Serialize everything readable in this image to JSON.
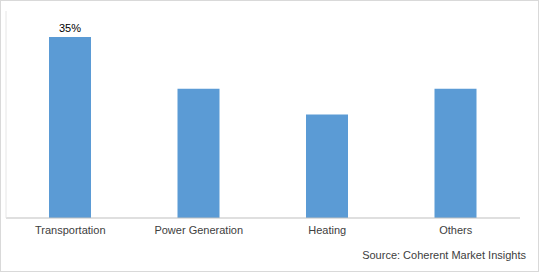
{
  "chart_data": {
    "type": "bar",
    "categories": [
      "Transportation",
      "Power Generation",
      "Heating",
      "Others"
    ],
    "values": [
      35,
      25,
      20,
      25
    ],
    "value_labels": [
      "35%",
      null,
      null,
      null
    ],
    "data_labels": true,
    "color": "#5b9bd5",
    "ylim": [
      0,
      40
    ],
    "yticks": [],
    "tick_labels": "x",
    "grid": false,
    "source": "Source: Coherent Market Insights"
  }
}
